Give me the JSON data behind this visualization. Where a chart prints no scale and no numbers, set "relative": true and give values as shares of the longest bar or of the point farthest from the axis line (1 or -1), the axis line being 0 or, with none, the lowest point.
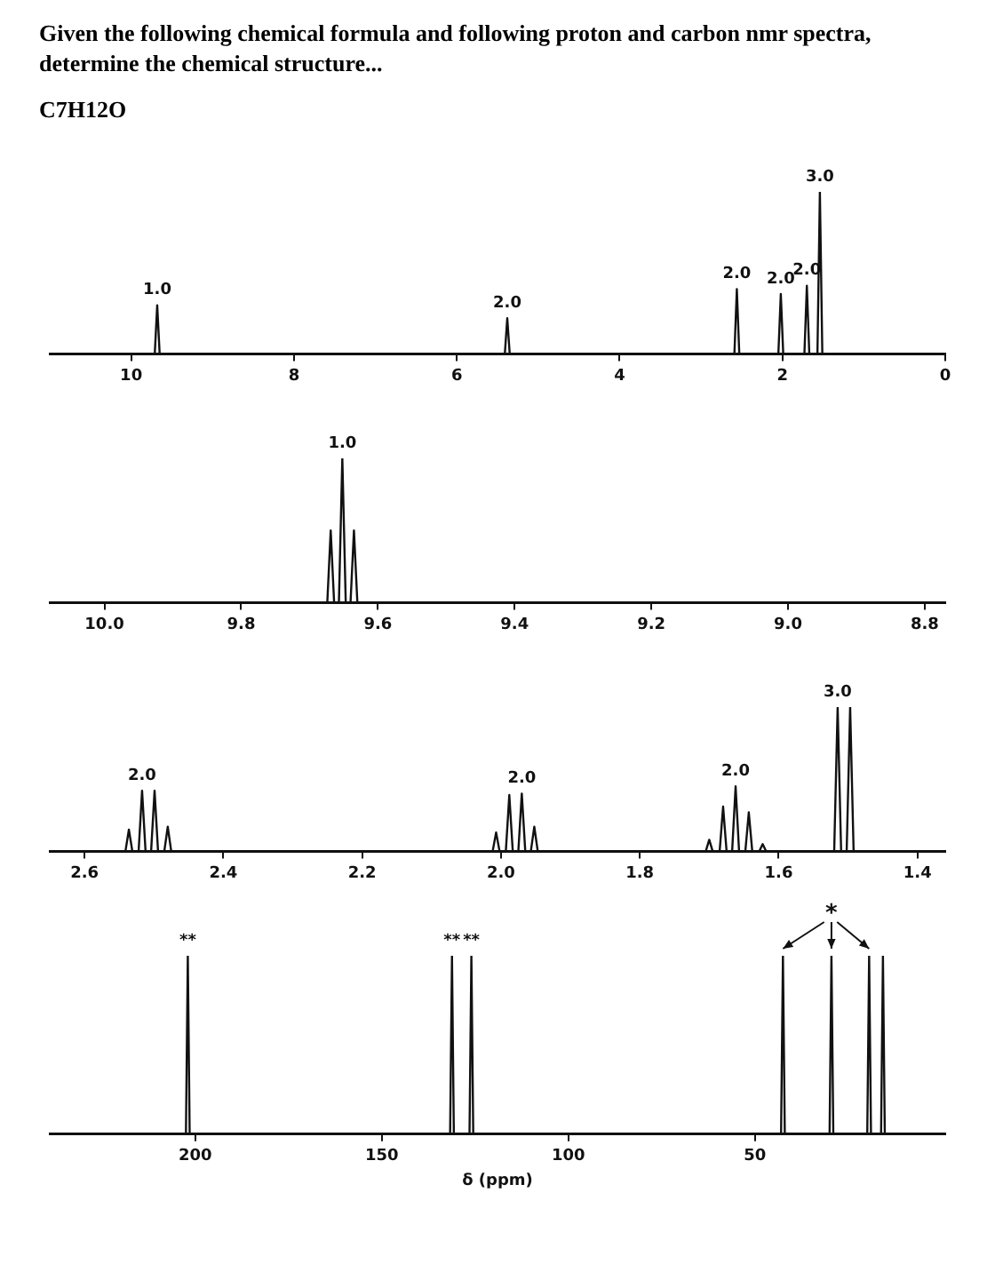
{
  "chart_data": [
    {
      "type": "line",
      "title": "Given the following chemical formula and following proton and carbon nmr spectra, determine the chemical structure...",
      "subtitle": "C7H12O",
      "relative": true,
      "grid": false,
      "legend": false,
      "xlim": [
        11,
        0
      ],
      "xticks": [
        10,
        8,
        6,
        4,
        2,
        0
      ],
      "series": [
        {
          "color": "#111111",
          "x": [
            11,
            9.71,
            9.68,
            9.65,
            5.41,
            5.38,
            5.35,
            2.59,
            2.56,
            2.53,
            2.05,
            2.02,
            1.99,
            1.73,
            1.7,
            1.67,
            1.57,
            1.54,
            1.51,
            0
          ],
          "values": [
            0,
            0,
            0.3,
            0,
            0,
            0.22,
            0,
            0,
            0.4,
            0,
            0,
            0.37,
            0,
            0,
            0.42,
            0,
            0,
            1,
            0,
            0
          ]
        }
      ],
      "annotations": [
        {
          "text": "1.0",
          "x": 9.68,
          "y": 0.3
        },
        {
          "text": "2.0",
          "x": 5.38,
          "y": 0.22
        },
        {
          "text": "2.0",
          "x": 2.56,
          "y": 0.4
        },
        {
          "text": "2.0",
          "x": 2.02,
          "y": 0.37
        },
        {
          "text": "2.0",
          "x": 1.7,
          "y": 0.42
        },
        {
          "text": "3.0",
          "x": 1.54,
          "y": 1
        }
      ]
    },
    {
      "type": "line",
      "relative": true,
      "grid": false,
      "legend": false,
      "xlim": [
        10.08,
        8.77
      ],
      "xticks": [
        {
          "value": 10.0,
          "label": "10.0"
        },
        {
          "value": 9.8,
          "label": "9.8"
        },
        {
          "value": 9.6,
          "label": "9.6"
        },
        {
          "value": 9.4,
          "label": "9.4"
        },
        {
          "value": 9.2,
          "label": "9.2"
        },
        {
          "value": 9.0,
          "label": "9.0"
        },
        {
          "value": 8.8,
          "label": "8.8"
        }
      ],
      "series": [
        {
          "color": "#111111",
          "x": [
            10.08,
            9.674,
            9.669,
            9.664,
            9.657,
            9.652,
            9.647,
            9.64,
            9.635,
            9.63,
            8.77
          ],
          "values": [
            0,
            0,
            0.5,
            0,
            0,
            1,
            0,
            0,
            0.5,
            0,
            0
          ]
        }
      ],
      "annotations": [
        {
          "text": "1.0",
          "x": 9.652,
          "y": 1
        }
      ]
    },
    {
      "type": "line",
      "relative": true,
      "grid": false,
      "legend": false,
      "xlim": [
        2.65,
        1.36
      ],
      "xticks": [
        {
          "value": 2.6,
          "label": "2.6"
        },
        {
          "value": 2.4,
          "label": "2.4"
        },
        {
          "value": 2.2,
          "label": "2.2"
        },
        {
          "value": 2.0,
          "label": "2.0"
        },
        {
          "value": 1.8,
          "label": "1.8"
        },
        {
          "value": 1.6,
          "label": "1.6"
        },
        {
          "value": 1.4,
          "label": "1.4"
        }
      ],
      "series": [
        {
          "color": "#111111",
          "x": [
            2.65,
            2.541,
            2.536,
            2.531,
            2.522,
            2.517,
            2.512,
            2.504,
            2.499,
            2.494,
            2.485,
            2.48,
            2.475,
            2.012,
            2.007,
            2.002,
            1.993,
            1.988,
            1.983,
            1.975,
            1.97,
            1.965,
            1.957,
            1.952,
            1.947,
            1.705,
            1.7,
            1.695,
            1.685,
            1.68,
            1.675,
            1.667,
            1.662,
            1.657,
            1.648,
            1.643,
            1.638,
            1.628,
            1.623,
            1.618,
            1.52,
            1.515,
            1.51,
            1.502,
            1.497,
            1.492,
            1.36
          ],
          "values": [
            0,
            0,
            0.15,
            0,
            0,
            0.42,
            0,
            0,
            0.42,
            0,
            0,
            0.17,
            0,
            0,
            0.13,
            0,
            0,
            0.39,
            0,
            0,
            0.4,
            0,
            0,
            0.17,
            0,
            0,
            0.08,
            0,
            0,
            0.31,
            0,
            0,
            0.45,
            0,
            0,
            0.27,
            0,
            0,
            0.05,
            0,
            0,
            1,
            0,
            0,
            1,
            0,
            0
          ]
        }
      ],
      "annotations": [
        {
          "text": "2.0",
          "x": 2.517,
          "y": 0.42
        },
        {
          "text": "2.0",
          "x": 1.97,
          "y": 0.4
        },
        {
          "text": "2.0",
          "x": 1.662,
          "y": 0.45
        },
        {
          "text": "3.0",
          "x": 1.515,
          "y": 1
        }
      ]
    },
    {
      "type": "line",
      "relative": true,
      "grid": false,
      "legend": false,
      "xlabel": "δ (ppm)",
      "xlim": [
        239,
        -1
      ],
      "xticks": [
        200,
        150,
        100,
        50
      ],
      "series": [
        {
          "color": "#111111",
          "x": [
            239,
            202.5,
            202,
            201.5,
            131.7,
            131.2,
            130.7,
            126.5,
            126,
            125.5,
            43,
            42.5,
            42,
            30,
            29.5,
            29,
            19.9,
            19.4,
            18.9,
            16.2,
            15.7,
            15.2,
            -1
          ],
          "values": [
            0,
            0,
            1,
            0,
            0,
            1,
            0,
            0,
            1,
            0,
            0,
            1,
            0,
            0,
            1,
            0,
            0,
            1,
            0,
            0,
            1,
            0,
            0
          ]
        }
      ],
      "annotations": [
        {
          "text": "**",
          "x": 202,
          "y": 1
        },
        {
          "text": "**",
          "x": 131.2,
          "y": 1
        },
        {
          "text": "**",
          "x": 126,
          "y": 1
        },
        {
          "text": "*",
          "x": 29.5,
          "y": 1
        }
      ]
    }
  ]
}
